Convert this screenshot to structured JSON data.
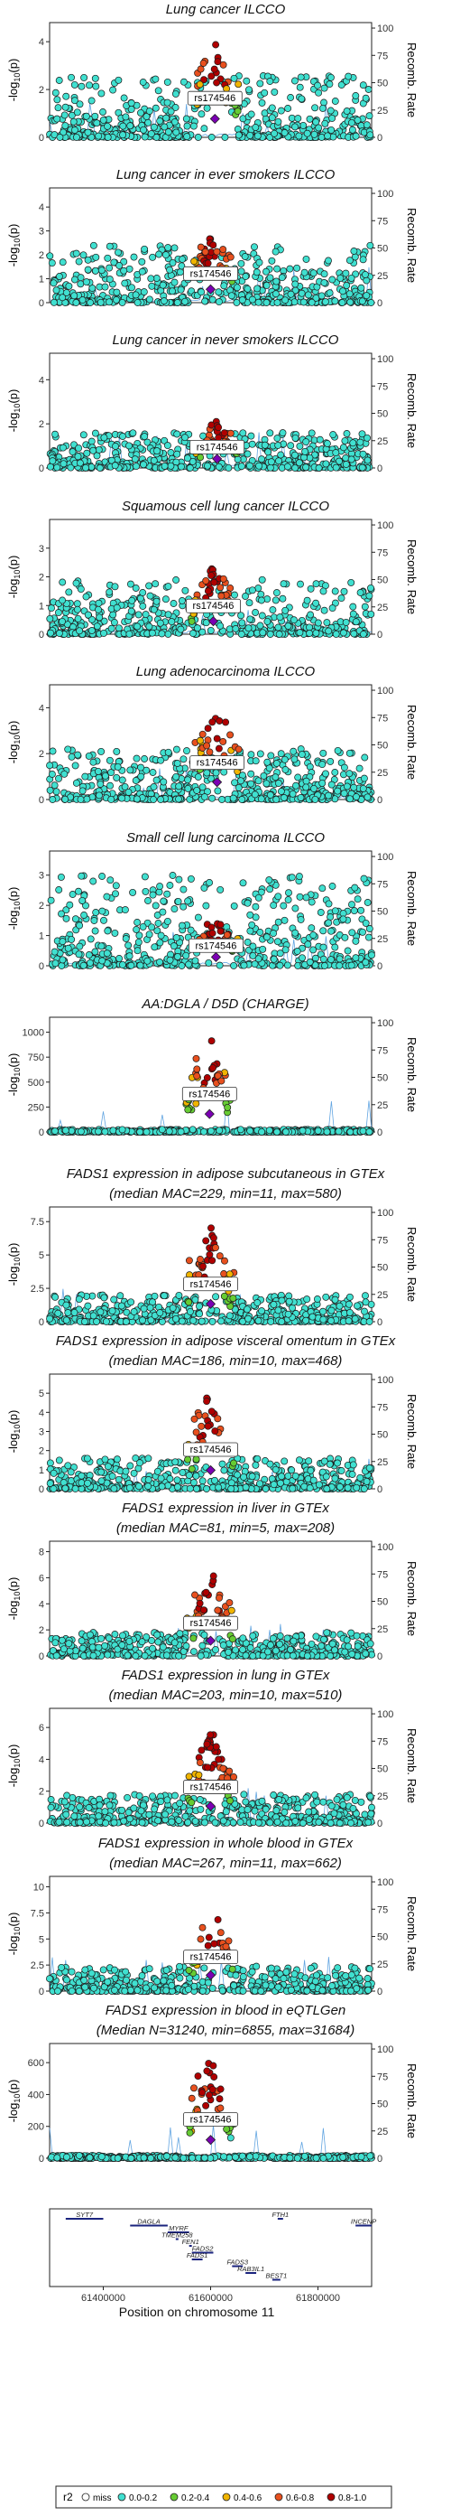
{
  "chart_data": [
    {
      "type": "scatter",
      "title_lines": [
        "Lung cancer ILCCO"
      ],
      "ylabel": "-log10(p)",
      "y2label": "Recomb. Rate",
      "yticks": [
        0,
        2,
        4
      ],
      "ylim": [
        0,
        4.8
      ],
      "y2ticks": [
        0,
        25,
        50,
        75,
        100
      ],
      "y2lim": [
        0,
        105
      ],
      "lead_snp": "rs174546",
      "peak": 4.3,
      "peak_x": 61608000,
      "spread": 1.6,
      "bg_max": 2.6,
      "seed": 1
    },
    {
      "type": "scatter",
      "title_lines": [
        "Lung cancer in ever smokers ILCCO"
      ],
      "ylabel": "-log10(p)",
      "y2label": "Recomb. Rate",
      "yticks": [
        0,
        1,
        2,
        3,
        4
      ],
      "ylim": [
        0,
        4.8
      ],
      "y2ticks": [
        0,
        25,
        50,
        75,
        100
      ],
      "y2lim": [
        0,
        105
      ],
      "lead_snp": "rs174546",
      "peak": 3.1,
      "peak_x": 61600000,
      "spread": 1.3,
      "bg_max": 2.4,
      "seed": 2
    },
    {
      "type": "scatter",
      "title_lines": [
        "Lung cancer in never smokers ILCCO"
      ],
      "ylabel": "-log10(p)",
      "y2label": "Recomb. Rate",
      "yticks": [
        0,
        2,
        4
      ],
      "ylim": [
        0,
        5.2
      ],
      "y2ticks": [
        0,
        25,
        50,
        75,
        100
      ],
      "y2lim": [
        0,
        105
      ],
      "lead_snp": "rs174546",
      "peak": 2.3,
      "peak_x": 61612000,
      "spread": 1.0,
      "bg_max": 1.6,
      "seed": 3
    },
    {
      "type": "scatter",
      "title_lines": [
        "Squamous cell lung cancer ILCCO"
      ],
      "ylabel": "-log10(p)",
      "y2label": "Recomb. Rate",
      "yticks": [
        0,
        1,
        2,
        3
      ],
      "ylim": [
        0,
        4.0
      ],
      "y2ticks": [
        0,
        25,
        50,
        75,
        100
      ],
      "y2lim": [
        0,
        105
      ],
      "lead_snp": "rs174546",
      "peak": 2.5,
      "peak_x": 61605000,
      "spread": 1.2,
      "bg_max": 1.9,
      "seed": 4
    },
    {
      "type": "scatter",
      "title_lines": [
        "Lung adenocarcinoma ILCCO"
      ],
      "ylabel": "-log10(p)",
      "y2label": "Recomb. Rate",
      "yticks": [
        0,
        2,
        4
      ],
      "ylim": [
        0,
        5.0
      ],
      "y2ticks": [
        0,
        25,
        50,
        75,
        100
      ],
      "y2lim": [
        0,
        105
      ],
      "lead_snp": "rs174546",
      "peak": 4.2,
      "peak_x": 61612000,
      "spread": 1.0,
      "bg_max": 2.2,
      "seed": 5
    },
    {
      "type": "scatter",
      "title_lines": [
        "Small cell lung carcinoma ILCCO"
      ],
      "ylabel": "-log10(p)",
      "y2label": "Recomb. Rate",
      "yticks": [
        0,
        1,
        2,
        3
      ],
      "ylim": [
        0,
        3.8
      ],
      "y2ticks": [
        0,
        25,
        50,
        75,
        100
      ],
      "y2lim": [
        0,
        105
      ],
      "lead_snp": "rs174546",
      "peak": 1.6,
      "peak_x": 61610000,
      "spread": 0.9,
      "bg_max": 3.0,
      "seed": 6
    },
    {
      "type": "scatter",
      "title_lines": [
        "AA:DGLA / D5D (CHARGE)"
      ],
      "ylabel": "-log10(p)",
      "y2label": "Recomb. Rate",
      "yticks": [
        0,
        250,
        500,
        750,
        1000
      ],
      "ylim": [
        0,
        1150
      ],
      "y2ticks": [
        0,
        25,
        50,
        75,
        100
      ],
      "y2lim": [
        0,
        105
      ],
      "lead_snp": "rs174546",
      "peak": 1000,
      "peak_x": 61598000,
      "spread": 1.2,
      "bg_max": 25,
      "seed": 7
    },
    {
      "type": "scatter",
      "title_lines": [
        "FADS1 expression in adipose subcutaneous in GTEx",
        "(median MAC=229, min=11, max=580)"
      ],
      "ylabel": "-log10(p)",
      "y2label": "Recomb. Rate",
      "yticks": [
        0,
        2.5,
        5.0,
        7.5
      ],
      "ylim": [
        0,
        8.6
      ],
      "y2ticks": [
        0,
        25,
        50,
        75,
        100
      ],
      "y2lim": [
        0,
        105
      ],
      "lead_snp": "rs174546",
      "peak": 7.4,
      "peak_x": 61600000,
      "spread": 1.3,
      "bg_max": 2.0,
      "seed": 8
    },
    {
      "type": "scatter",
      "title_lines": [
        "FADS1 expression in adipose visceral omentum in GTEx",
        "(median MAC=186, min=10, max=468)"
      ],
      "ylabel": "-log10(p)",
      "y2label": "Recomb. Rate",
      "yticks": [
        0,
        1,
        2,
        3,
        4,
        5
      ],
      "ylim": [
        0,
        6.0
      ],
      "y2ticks": [
        0,
        25,
        50,
        75,
        100
      ],
      "y2lim": [
        0,
        105
      ],
      "lead_snp": "rs174546",
      "peak": 5.4,
      "peak_x": 61600000,
      "spread": 1.3,
      "bg_max": 1.6,
      "seed": 9
    },
    {
      "type": "scatter",
      "title_lines": [
        "FADS1 expression in liver in GTEx",
        "(median MAC=81, min=5, max=208)"
      ],
      "ylabel": "-log10(p)",
      "y2label": "Recomb. Rate",
      "yticks": [
        0,
        2,
        4,
        6,
        8
      ],
      "ylim": [
        0,
        8.8
      ],
      "y2ticks": [
        0,
        25,
        50,
        75,
        100
      ],
      "y2lim": [
        0,
        105
      ],
      "lead_snp": "rs174546",
      "peak": 6.5,
      "peak_x": 61600000,
      "spread": 1.2,
      "bg_max": 1.8,
      "seed": 10
    },
    {
      "type": "scatter",
      "title_lines": [
        "FADS1 expression in lung in GTEx",
        "(median MAC=203, min=10, max=510)"
      ],
      "ylabel": "-log10(p)",
      "y2label": "Recomb. Rate",
      "yticks": [
        0,
        2,
        4,
        6
      ],
      "ylim": [
        0,
        7.2
      ],
      "y2ticks": [
        0,
        25,
        50,
        75,
        100
      ],
      "y2lim": [
        0,
        105
      ],
      "lead_snp": "rs174546",
      "peak": 5.9,
      "peak_x": 61600000,
      "spread": 1.3,
      "bg_max": 1.8,
      "seed": 11
    },
    {
      "type": "scatter",
      "title_lines": [
        "FADS1 expression in whole blood in GTEx",
        "(median MAC=267, min=11, max=662)"
      ],
      "ylabel": "-log10(p)",
      "y2label": "Recomb. Rate",
      "yticks": [
        0,
        2.5,
        5.0,
        7.5,
        10.0
      ],
      "ylim": [
        0,
        11.0
      ],
      "y2ticks": [
        0,
        25,
        50,
        75,
        100
      ],
      "y2lim": [
        0,
        105
      ],
      "lead_snp": "rs174546",
      "peak": 8.5,
      "peak_x": 61600000,
      "spread": 1.3,
      "bg_max": 2.4,
      "seed": 12
    },
    {
      "type": "scatter",
      "title_lines": [
        "FADS1 expression in blood in eQTLGen",
        "(Median N=31240, min=6855, max=31684)"
      ],
      "ylabel": "-log10(p)",
      "y2label": "Recomb. Rate",
      "yticks": [
        0,
        200,
        400,
        600
      ],
      "ylim": [
        0,
        720
      ],
      "y2ticks": [
        0,
        25,
        50,
        75,
        100
      ],
      "y2lim": [
        0,
        105
      ],
      "lead_snp": "rs174546",
      "peak": 640,
      "peak_x": 61600000,
      "spread": 1.2,
      "bg_max": 18,
      "seed": 13
    }
  ],
  "xlim": [
    61300000,
    61900000
  ],
  "xticks": [
    61400000,
    61600000,
    61800000
  ],
  "xlabel": "Position on chromosome 11",
  "genes": [
    {
      "name": "SYT7",
      "start": 61330000,
      "end": 61400000,
      "row": 0
    },
    {
      "name": "DAGLA",
      "start": 61450000,
      "end": 61520000,
      "row": 1
    },
    {
      "name": "MYRF",
      "start": 61520000,
      "end": 61560000,
      "row": 2
    },
    {
      "name": "TMEM258",
      "start": 61535000,
      "end": 61540000,
      "row": 3
    },
    {
      "name": "FEN1",
      "start": 61560000,
      "end": 61565000,
      "row": 4
    },
    {
      "name": "FADS2",
      "start": 61565000,
      "end": 61605000,
      "row": 5
    },
    {
      "name": "FADS1",
      "start": 61565000,
      "end": 61585000,
      "row": 6
    },
    {
      "name": "FADS3",
      "start": 61640000,
      "end": 61660000,
      "row": 7
    },
    {
      "name": "RAB3IL1",
      "start": 61665000,
      "end": 61685000,
      "row": 8
    },
    {
      "name": "BEST1",
      "start": 61715000,
      "end": 61730000,
      "row": 9
    },
    {
      "name": "FTH1",
      "start": 61725000,
      "end": 61735000,
      "row": 0
    },
    {
      "name": "INCENP",
      "start": 61870000,
      "end": 61900000,
      "row": 1
    }
  ],
  "legend": {
    "title": "r2",
    "items": [
      {
        "label": "miss",
        "color": "#ffffff"
      },
      {
        "label": "0.0-0.2",
        "color": "#40e0d0"
      },
      {
        "label": "0.2-0.4",
        "color": "#66cc33"
      },
      {
        "label": "0.4-0.6",
        "color": "#f0b400"
      },
      {
        "label": "0.6-0.8",
        "color": "#e8501e"
      },
      {
        "label": "0.8-1.0",
        "color": "#b00000"
      }
    ]
  },
  "colors": {
    "lead": "#7b00b3",
    "recomb": "#3b8fd9",
    "gene": "#1a237e",
    "point_stroke": "#1a1a1a"
  }
}
